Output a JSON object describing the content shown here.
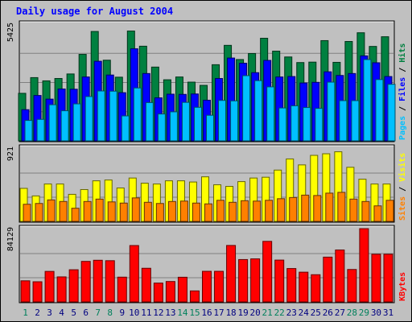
{
  "chart_data": {
    "type": "bar",
    "title": "Daily usage for August 2004",
    "categories": [
      "1",
      "2",
      "3",
      "4",
      "5",
      "6",
      "7",
      "8",
      "9",
      "10",
      "11",
      "12",
      "13",
      "14",
      "15",
      "16",
      "17",
      "18",
      "19",
      "20",
      "21",
      "22",
      "23",
      "24",
      "25",
      "26",
      "27",
      "28",
      "29",
      "30",
      "31"
    ],
    "weekend_days": [
      "1",
      "7",
      "8",
      "14",
      "15",
      "21",
      "22",
      "28",
      "29"
    ],
    "panels": [
      {
        "id": "hits-files-pages",
        "ymax_label": "5425",
        "ymax": 5425,
        "legend": [
          "Pages",
          "Files",
          "Hits"
        ],
        "series": [
          {
            "name": "Hits",
            "color": "#008040",
            "values": [
              2210,
              2940,
              2790,
              2900,
              3110,
              4020,
              5085,
              3750,
              2960,
              5105,
              4400,
              3430,
              2840,
              2970,
              2730,
              2580,
              3540,
              4440,
              3780,
              4060,
              4770,
              4170,
              3900,
              3640,
              3660,
              4660,
              3650,
              4620,
              5025,
              4390,
              4840
            ]
          },
          {
            "name": "Files",
            "color": "#0000ff",
            "values": [
              1450,
              2110,
              1940,
              2410,
              2400,
              2970,
              3700,
              3060,
              2240,
              4280,
              3130,
              2000,
              2170,
              2160,
              2180,
              1890,
              2900,
              3850,
              3610,
              3170,
              3740,
              2970,
              2990,
              2690,
              2720,
              3210,
              3040,
              3130,
              3950,
              3630,
              2990
            ]
          },
          {
            "name": "Pages",
            "color": "#00c0ff",
            "values": [
              950,
              1000,
              1680,
              1400,
              1720,
              2060,
              2320,
              2310,
              1160,
              2460,
              1780,
              1250,
              1350,
              1790,
              1560,
              1190,
              1880,
              1860,
              3030,
              2800,
              2510,
              1530,
              1630,
              1550,
              1510,
              2730,
              1870,
              1870,
              3780,
              2850,
              2630
            ]
          }
        ]
      },
      {
        "id": "visits-sites",
        "ymax_label": "921",
        "ymax": 921,
        "legend": [
          "Sites",
          "Visits"
        ],
        "series": [
          {
            "name": "Visits",
            "color": "#ffff00",
            "values": [
              415,
              320,
              470,
              470,
              340,
              400,
              510,
              520,
              420,
              545,
              480,
              470,
              510,
              510,
              495,
              560,
              460,
              440,
              500,
              545,
              555,
              645,
              785,
              710,
              830,
              850,
              875,
              680,
              530,
              470,
              470
            ]
          },
          {
            "name": "Sites",
            "color": "#ff8000",
            "values": [
              215,
              225,
              270,
              250,
              165,
              250,
              280,
              245,
              230,
              295,
              240,
              225,
              250,
              255,
              230,
              220,
              265,
              240,
              260,
              255,
              265,
              285,
              300,
              330,
              325,
              355,
              365,
              280,
              250,
              195,
              265
            ]
          }
        ]
      },
      {
        "id": "kbytes",
        "ymax_label": "84129",
        "ymax": 84129,
        "legend": [
          "KBytes"
        ],
        "series": [
          {
            "name": "KBytes",
            "color": "#ff0000",
            "values": [
              24200,
              23100,
              35000,
              28700,
              36900,
              46500,
              47800,
              47300,
              28400,
              64700,
              38600,
              21600,
              23400,
              28300,
              12600,
              35100,
              35100,
              64800,
              48600,
              49400,
              69500,
              48000,
              38300,
              34100,
              31200,
              51400,
              59600,
              37200,
              84100,
              54700,
              54700
            ]
          }
        ]
      }
    ]
  },
  "colors": {
    "background": "#c0c0c0",
    "plot_background": "#c0c0c0",
    "grid": "#808080",
    "title_color": "#0000ff",
    "weekend_label_color": "#00805c",
    "weekday_label_color": "#000080"
  }
}
